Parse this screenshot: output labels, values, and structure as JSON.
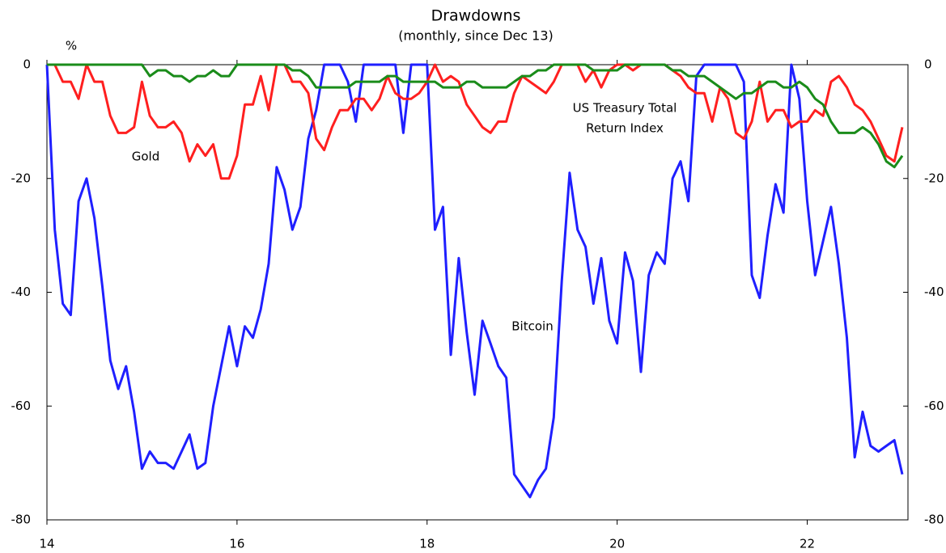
{
  "chart_data": {
    "type": "line",
    "title": "Drawdowns",
    "subtitle": "(monthly, since Dec 13)",
    "y_label": "%",
    "x": [
      14,
      14.083,
      14.167,
      14.25,
      14.333,
      14.417,
      14.5,
      14.583,
      14.667,
      14.75,
      14.833,
      14.917,
      15,
      15.083,
      15.167,
      15.25,
      15.333,
      15.417,
      15.5,
      15.583,
      15.667,
      15.75,
      15.833,
      15.917,
      16,
      16.083,
      16.167,
      16.25,
      16.333,
      16.417,
      16.5,
      16.583,
      16.667,
      16.75,
      16.833,
      16.917,
      17,
      17.083,
      17.167,
      17.25,
      17.333,
      17.417,
      17.5,
      17.583,
      17.667,
      17.75,
      17.833,
      17.917,
      18,
      18.083,
      18.167,
      18.25,
      18.333,
      18.417,
      18.5,
      18.583,
      18.667,
      18.75,
      18.833,
      18.917,
      19,
      19.083,
      19.167,
      19.25,
      19.333,
      19.417,
      19.5,
      19.583,
      19.667,
      19.75,
      19.833,
      19.917,
      20,
      20.083,
      20.167,
      20.25,
      20.333,
      20.417,
      20.5,
      20.583,
      20.667,
      20.75,
      20.833,
      20.917,
      21,
      21.083,
      21.167,
      21.25,
      21.333,
      21.417,
      21.5,
      21.583,
      21.667,
      21.75,
      21.833,
      21.917,
      22,
      22.083,
      22.167,
      22.25,
      22.333,
      22.417,
      22.5,
      22.583,
      22.667,
      22.75,
      22.833,
      22.917,
      23
    ],
    "series": [
      {
        "name": "Bitcoin",
        "color": "#1f1fff",
        "values": [
          0,
          -29,
          -42,
          -44,
          -24,
          -20,
          -27,
          -39,
          -52,
          -57,
          -53,
          -61,
          -71,
          -68,
          -70,
          -70,
          -71,
          -68,
          -65,
          -71,
          -70,
          -60,
          -53,
          -46,
          -53,
          -46,
          -48,
          -43,
          -35,
          -18,
          -22,
          -29,
          -25,
          -13,
          -8,
          0,
          0,
          0,
          -3,
          -10,
          0,
          0,
          0,
          0,
          0,
          -12,
          0,
          0,
          0,
          -29,
          -25,
          -51,
          -34,
          -47,
          -58,
          -45,
          -49,
          -53,
          -55,
          -72,
          -74,
          -76,
          -73,
          -71,
          -62,
          -38,
          -19,
          -29,
          -32,
          -42,
          -34,
          -45,
          -49,
          -33,
          -38,
          -54,
          -37,
          -33,
          -35,
          -20,
          -17,
          -24,
          -2,
          0,
          0,
          0,
          0,
          0,
          -3,
          -37,
          -41,
          -30,
          -21,
          -26,
          0,
          -6,
          -24,
          -37,
          -31,
          -25,
          -35,
          -48,
          -69,
          -61,
          -67,
          -68,
          -67,
          -66,
          -72
        ]
      },
      {
        "name": "Gold",
        "color": "#ff1f1f",
        "values": [
          0,
          0,
          -3,
          -3,
          -6,
          0,
          -3,
          -3,
          -9,
          -12,
          -12,
          -11,
          -3,
          -9,
          -11,
          -11,
          -10,
          -12,
          -17,
          -14,
          -16,
          -14,
          -20,
          -20,
          -16,
          -7,
          -7,
          -2,
          -8,
          0,
          0,
          -3,
          -3,
          -5,
          -13,
          -15,
          -11,
          -8,
          -8,
          -6,
          -6,
          -8,
          -6,
          -2,
          -5,
          -6,
          -6,
          -5,
          -3,
          0,
          -3,
          -2,
          -3,
          -7,
          -9,
          -11,
          -12,
          -10,
          -10,
          -5,
          -2,
          -3,
          -4,
          -5,
          -3,
          0,
          0,
          0,
          -3,
          -1,
          -4,
          -1,
          0,
          0,
          -1,
          0,
          0,
          0,
          0,
          -1,
          -2,
          -4,
          -5,
          -5,
          -10,
          -4,
          -6,
          -12,
          -13,
          -10,
          -3,
          -10,
          -8,
          -8,
          -11,
          -10,
          -10,
          -8,
          -9,
          -3,
          -2,
          -4,
          -7,
          -8,
          -10,
          -13,
          -16,
          -17,
          -11
        ]
      },
      {
        "name": "US Treasury Total Return Index",
        "color": "#1a8c1a",
        "values": [
          0,
          0,
          0,
          0,
          0,
          0,
          0,
          0,
          0,
          0,
          0,
          0,
          0,
          -2,
          -1,
          -1,
          -2,
          -2,
          -3,
          -2,
          -2,
          -1,
          -2,
          -2,
          0,
          0,
          0,
          0,
          0,
          0,
          0,
          -1,
          -1,
          -2,
          -4,
          -4,
          -4,
          -4,
          -4,
          -3,
          -3,
          -3,
          -3,
          -2,
          -2,
          -3,
          -3,
          -3,
          -3,
          -3,
          -4,
          -4,
          -4,
          -3,
          -3,
          -4,
          -4,
          -4,
          -4,
          -3,
          -2,
          -2,
          -1,
          -1,
          0,
          0,
          0,
          0,
          0,
          -1,
          -1,
          -1,
          -1,
          0,
          0,
          0,
          0,
          0,
          0,
          -1,
          -1,
          -2,
          -2,
          -2,
          -3,
          -4,
          -5,
          -6,
          -5,
          -5,
          -4,
          -3,
          -3,
          -4,
          -4,
          -3,
          -4,
          -6,
          -7,
          -10,
          -12,
          -12,
          -12,
          -11,
          -12,
          -14,
          -17,
          -18,
          -16
        ]
      }
    ],
    "annotations": [
      [
        "Bitcoin"
      ],
      [
        "Gold"
      ],
      [
        "US Treasury Total",
        "Return Index"
      ]
    ],
    "xlim": [
      14,
      23.06
    ],
    "xticks": [
      14,
      16,
      18,
      20,
      22
    ],
    "ylim": [
      -80,
      0
    ],
    "yticks": [
      0,
      -20,
      -40,
      -60,
      -80
    ],
    "y2lim": [
      -80,
      0
    ],
    "y2ticks": [
      0,
      -20,
      -40,
      -60,
      -80
    ]
  }
}
